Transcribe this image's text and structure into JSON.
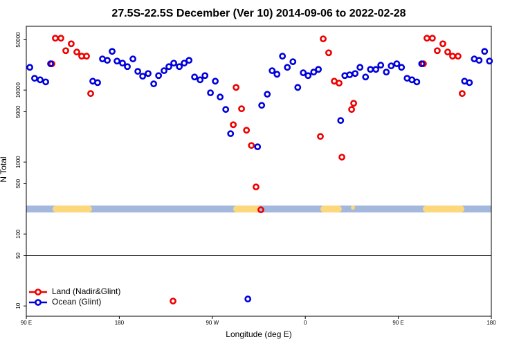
{
  "chart_data": {
    "type": "scatter",
    "title": "27.5S-22.5S December (Ver 10)   2014-09-06 to 2022-02-28",
    "xlabel": "Longitude (deg E)",
    "ylabel": "N Total",
    "xlim": [
      90,
      540
    ],
    "xticks": [
      {
        "value": 90,
        "label": "90 E"
      },
      180,
      {
        "value": 270,
        "label": "90 W"
      },
      {
        "value": 360,
        "label": "0"
      },
      {
        "value": 450,
        "label": "90 E"
      },
      {
        "value": 540,
        "label": "180"
      }
    ],
    "ylim": [
      7.2,
      77000
    ],
    "ylog": true,
    "yticks": [
      10,
      50,
      100,
      500,
      1000,
      5000,
      10000,
      50000
    ],
    "hline": 50,
    "legend": "lower left",
    "series": [
      {
        "name": "Land (Nadir&Glint)",
        "color": "#ee0000",
        "x": [
          114.8,
          118.1,
          123.5,
          128.2,
          133.5,
          138.9,
          143.6,
          148.3,
          152.3,
          293.0,
          290.3,
          298.3,
          303.1,
          307.8,
          312.3,
          317.0,
          374.6,
          377.3,
          382.6,
          388.0,
          392.7,
          395.4,
          404.8,
          406.8,
          474.3,
          477.7,
          483.0,
          487.7,
          493.1,
          497.8,
          502.5,
          507.8,
          511.8,
          232.0
        ],
        "values": [
          23200,
          52600,
          52600,
          35300,
          44000,
          33800,
          29600,
          29600,
          8950,
          10900,
          3300,
          5500,
          2770,
          1700,
          451,
          217,
          2270,
          51500,
          33000,
          13300,
          12500,
          1170,
          5380,
          6560,
          23200,
          52600,
          52600,
          35300,
          44000,
          33800,
          29600,
          29600,
          8950,
          11.7
        ]
      },
      {
        "name": "Ocean (Glint)",
        "color": "#0000dd",
        "x": [
          93.4,
          98.0,
          103.4,
          108.8,
          113.5,
          154.3,
          159.0,
          163.7,
          168.4,
          173.1,
          177.8,
          183.1,
          187.8,
          193.2,
          197.9,
          202.6,
          207.9,
          213.3,
          218.0,
          223.3,
          228.0,
          232.7,
          238.1,
          242.8,
          247.5,
          252.8,
          258.2,
          262.9,
          268.2,
          272.9,
          277.6,
          283.0,
          287.7,
          313.8,
          317.8,
          323.2,
          327.9,
          332.6,
          337.9,
          342.6,
          348.0,
          352.7,
          358.0,
          362.7,
          368.1,
          372.7,
          394.2,
          398.2,
          402.9,
          408.2,
          412.9,
          418.3,
          423.0,
          428.3,
          433.0,
          438.4,
          443.1,
          448.5,
          453.1,
          458.5,
          463.2,
          467.9,
          472.6,
          514.1,
          518.8,
          523.5,
          528.2,
          533.5,
          538.2,
          304.4
        ],
        "values": [
          20700,
          14600,
          13900,
          13000,
          23200,
          13300,
          12700,
          27100,
          25900,
          34500,
          25300,
          23700,
          21200,
          27100,
          18200,
          15600,
          17000,
          12200,
          15900,
          18600,
          21200,
          23700,
          21200,
          23700,
          25900,
          15200,
          13900,
          15900,
          9160,
          13300,
          8010,
          5380,
          2480,
          1630,
          6140,
          8760,
          18600,
          16600,
          29600,
          20700,
          24800,
          10900,
          17400,
          15900,
          17800,
          19400,
          3780,
          15900,
          16300,
          17000,
          20700,
          15200,
          19400,
          19400,
          22200,
          17800,
          21700,
          23200,
          20700,
          14600,
          13900,
          13000,
          23200,
          13300,
          12700,
          27100,
          25900,
          34500,
          25300,
          12.5
        ]
      }
    ]
  }
}
